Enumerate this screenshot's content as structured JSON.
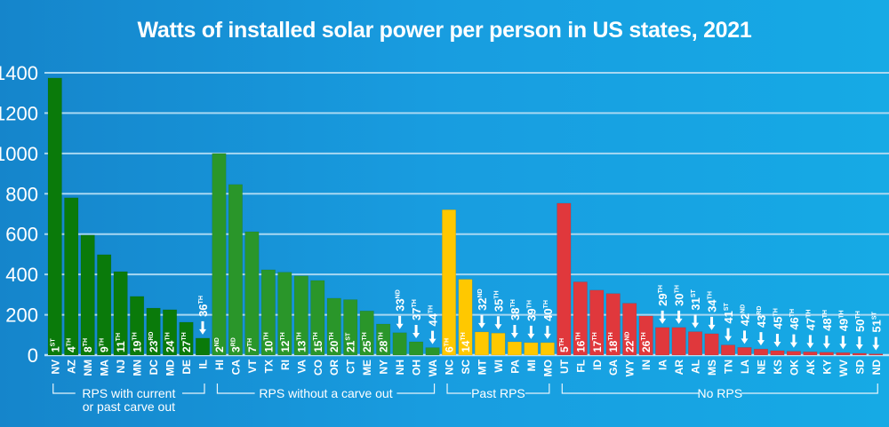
{
  "chart_data": {
    "type": "bar",
    "title": "Watts of installed solar power per person in US states, 2021",
    "xlabel": "",
    "ylabel": "",
    "ylim": [
      0,
      1400
    ],
    "yticks": [
      0,
      200,
      400,
      600,
      800,
      1000,
      1200,
      1400
    ],
    "grid": true,
    "legend": "none",
    "groups": [
      {
        "name": "RPS with current or past carve out",
        "label_lines": [
          "RPS with current",
          "or past carve out"
        ],
        "color": "#0a7a0a",
        "states": [
          "NV",
          "AZ",
          "NM",
          "MA",
          "NJ",
          "MN",
          "DC",
          "MD",
          "DE",
          "IL"
        ],
        "values": [
          1374,
          780,
          595,
          498,
          414,
          291,
          233,
          225,
          163,
          84
        ],
        "ranks": [
          "1|ST",
          "4|TH",
          "8|TH",
          "9|TH",
          "11|TH",
          "19|TH",
          "23|RD",
          "24|TH",
          "27|TH",
          "36|TH"
        ]
      },
      {
        "name": "RPS without a carve out",
        "label_lines": [
          "RPS without a carve out"
        ],
        "color": "#2a962a",
        "states": [
          "HI",
          "CA",
          "VT",
          "TX",
          "RI",
          "VA",
          "CO",
          "OR",
          "CT",
          "ME",
          "NY",
          "NH",
          "OH",
          "WA"
        ],
        "values": [
          1000,
          846,
          612,
          423,
          411,
          393,
          370,
          282,
          275,
          219,
          154,
          111,
          66,
          37
        ],
        "ranks": [
          "2|ND",
          "3|RD",
          "7|TH",
          "10|TH",
          "12|TH",
          "13|TH",
          "15|TH",
          "20|TH",
          "21|ST",
          "25|TH",
          "28|TH",
          "33|ND",
          "37|TH",
          "44|TH"
        ]
      },
      {
        "name": "Past RPS",
        "label_lines": [
          "Past RPS"
        ],
        "color": "#ffc800",
        "states": [
          "NC",
          "SC",
          "MT",
          "WI",
          "PA",
          "MI",
          "MO"
        ],
        "values": [
          721,
          376,
          115,
          109,
          66,
          62,
          62
        ],
        "ranks": [
          "6|TH",
          "14|TH",
          "32|ND",
          "35|TH",
          "38|TH",
          "39|TH",
          "40|TH"
        ]
      },
      {
        "name": "No RPS",
        "label_lines": [
          "No RPS"
        ],
        "color": "#e0383c",
        "states": [
          "UT",
          "FL",
          "ID",
          "GA",
          "WY",
          "IN",
          "IA",
          "AR",
          "AL",
          "MS",
          "TN",
          "LA",
          "NE",
          "KS",
          "OK",
          "AK",
          "KY",
          "WV",
          "SD",
          "ND"
        ],
        "values": [
          753,
          363,
          322,
          305,
          257,
          194,
          137,
          137,
          116,
          106,
          50,
          38,
          30,
          22,
          19,
          16,
          14,
          12,
          9,
          6
        ],
        "ranks": [
          "5|TH",
          "16|TH",
          "17|TH",
          "18|TH",
          "22|ND",
          "26|TH",
          "29|TH",
          "30|TH",
          "31|ST",
          "34|TH",
          "41|ST",
          "42|ND",
          "43|RD",
          "45|TH",
          "46|TH",
          "47|TH",
          "48|TH",
          "49|TH",
          "50|TH",
          "51|ST"
        ]
      }
    ]
  }
}
